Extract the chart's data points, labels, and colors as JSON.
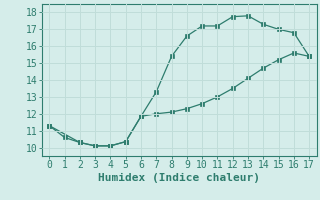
{
  "xlabel": "Humidex (Indice chaleur)",
  "xlim": [
    -0.5,
    17.5
  ],
  "ylim": [
    9.5,
    18.5
  ],
  "xticks": [
    0,
    1,
    2,
    3,
    4,
    5,
    6,
    7,
    8,
    9,
    10,
    11,
    12,
    13,
    14,
    15,
    16,
    17
  ],
  "yticks": [
    10,
    11,
    12,
    13,
    14,
    15,
    16,
    17,
    18
  ],
  "line1_x": [
    0,
    1,
    2,
    3,
    4,
    5,
    6,
    7,
    8,
    9,
    10,
    11,
    12,
    13,
    14,
    15,
    16,
    17
  ],
  "line1_y": [
    11.3,
    10.6,
    10.3,
    10.1,
    10.1,
    10.35,
    11.85,
    13.3,
    15.4,
    16.6,
    17.2,
    17.2,
    17.75,
    17.8,
    17.3,
    17.0,
    16.8,
    15.4
  ],
  "line2_x": [
    0,
    2,
    3,
    4,
    5,
    6,
    7,
    8,
    9,
    10,
    11,
    12,
    13,
    14,
    15,
    16,
    17
  ],
  "line2_y": [
    11.3,
    10.3,
    10.1,
    10.1,
    10.35,
    11.85,
    12.0,
    12.1,
    12.3,
    12.6,
    13.0,
    13.5,
    14.1,
    14.7,
    15.2,
    15.6,
    15.4
  ],
  "line_color": "#2e7d6e",
  "bg_color": "#d5edea",
  "grid_color": "#c0ddd9",
  "xlabel_fontsize": 8,
  "tick_fontsize": 7
}
